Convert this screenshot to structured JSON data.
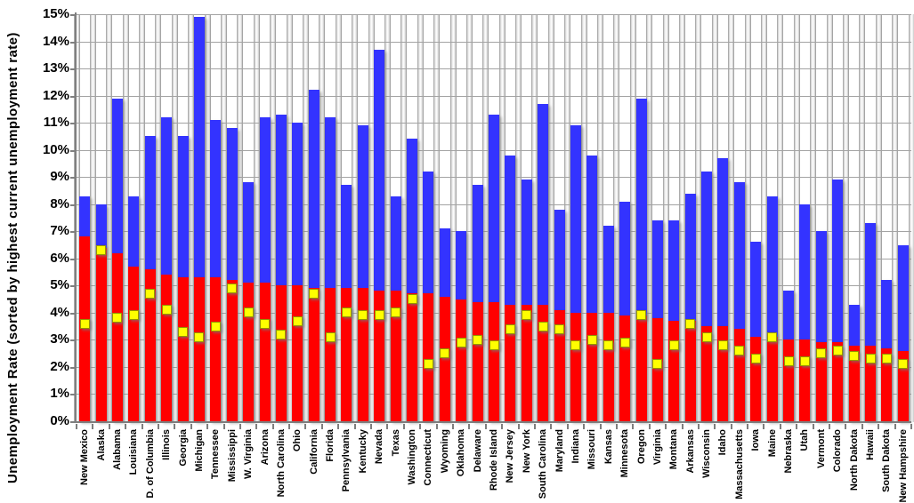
{
  "chart_data": {
    "type": "bar",
    "title": "",
    "xlabel": "",
    "ylabel": "Unemployment Rate (sorted by highest current unemployment rate)",
    "ylim": [
      0,
      15
    ],
    "y_ticks": [
      "0%",
      "1%",
      "2%",
      "3%",
      "4%",
      "5%",
      "6%",
      "7%",
      "8%",
      "9%",
      "10%",
      "11%",
      "12%",
      "13%",
      "14%",
      "15%"
    ],
    "grid": true,
    "legend": "none",
    "categories": [
      "New Mexico",
      "Alaska",
      "Alabama",
      "Louisiana",
      "D. of Columbia",
      "Illinois",
      "Georgia",
      "Michigan",
      "Tennessee",
      "Mississippi",
      "W. Virginia",
      "Arizona",
      "North Carolina",
      "Ohio",
      "California",
      "Florida",
      "Pennsylvania",
      "Kentucky",
      "Nevada",
      "Texas",
      "Washington",
      "Connecticut",
      "Wyoming",
      "Oklahoma",
      "Delaware",
      "Rhode Island",
      "New Jersey",
      "New York",
      "South Carolina",
      "Maryland",
      "Indiana",
      "Missouri",
      "Kansas",
      "Minnesota",
      "Oregon",
      "Virginia",
      "Montana",
      "Arkansas",
      "Wisconsin",
      "Idaho",
      "Massachusetts",
      "Iowa",
      "Maine",
      "Nebraska",
      "Utah",
      "Vermont",
      "Colorado",
      "North Dakota",
      "Hawaii",
      "South Dakota",
      "New Hampshire"
    ],
    "series": [
      {
        "name": "blue-bars",
        "color": "#3333ff",
        "values": [
          8.3,
          8.0,
          11.9,
          8.3,
          10.5,
          11.2,
          10.5,
          14.9,
          11.1,
          10.8,
          8.8,
          11.2,
          11.3,
          11.0,
          12.2,
          11.2,
          8.7,
          10.9,
          13.7,
          8.3,
          10.4,
          9.2,
          7.1,
          7.0,
          8.7,
          11.3,
          9.8,
          8.9,
          11.7,
          7.8,
          10.9,
          9.8,
          7.2,
          8.1,
          11.9,
          7.4,
          7.4,
          8.4,
          9.2,
          9.7,
          8.8,
          6.6,
          8.3,
          4.8,
          8.0,
          7.0,
          8.9,
          4.3,
          7.3,
          5.2,
          6.5
        ]
      },
      {
        "name": "red-bars",
        "color": "#ff0000",
        "values": [
          6.8,
          6.4,
          6.2,
          5.7,
          5.6,
          5.4,
          5.3,
          5.3,
          5.3,
          5.2,
          5.1,
          5.1,
          5.0,
          5.0,
          4.9,
          4.9,
          4.9,
          4.9,
          4.8,
          4.8,
          4.7,
          4.7,
          4.6,
          4.5,
          4.4,
          4.4,
          4.3,
          4.3,
          4.3,
          4.1,
          4.0,
          4.0,
          4.0,
          3.9,
          3.9,
          3.8,
          3.7,
          3.7,
          3.5,
          3.5,
          3.4,
          3.1,
          3.1,
          3.0,
          3.0,
          2.9,
          2.9,
          2.8,
          2.8,
          2.7,
          2.6
        ]
      },
      {
        "name": "yellow-markers",
        "color": "#ffff00",
        "marker": "square",
        "values": [
          3.6,
          6.3,
          3.8,
          3.9,
          4.7,
          4.1,
          3.3,
          3.1,
          3.5,
          4.9,
          4.0,
          3.6,
          3.2,
          3.7,
          4.7,
          3.1,
          4.0,
          3.9,
          3.9,
          4.0,
          4.5,
          2.1,
          2.5,
          2.9,
          3.0,
          2.8,
          3.4,
          3.9,
          3.5,
          3.4,
          2.8,
          3.0,
          2.8,
          2.9,
          3.9,
          2.1,
          2.8,
          3.6,
          3.1,
          2.8,
          2.6,
          2.3,
          3.1,
          2.2,
          2.2,
          2.5,
          2.6,
          2.4,
          2.3,
          2.3,
          2.1
        ]
      }
    ]
  }
}
